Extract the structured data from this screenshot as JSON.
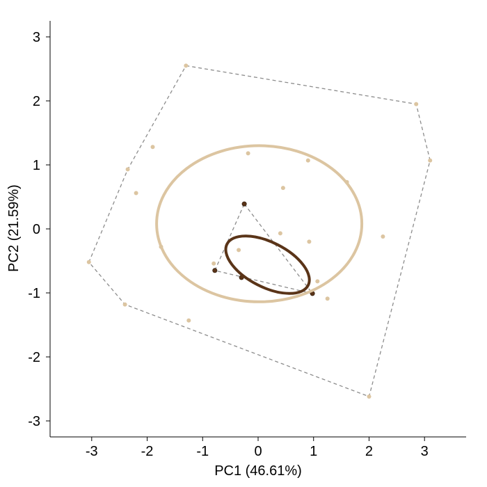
{
  "chart_data": {
    "type": "scatter",
    "title": "",
    "xlabel": "PC1 (46.61%)",
    "ylabel": "PC2 (21.59%)",
    "xlim": [
      -3.75,
      3.75
    ],
    "ylim": [
      -3.25,
      3.25
    ],
    "xticks": [
      -3,
      -2,
      -1,
      0,
      1,
      2,
      3
    ],
    "yticks": [
      -3,
      -2,
      -1,
      0,
      1,
      2,
      3
    ],
    "grid": false,
    "legend": "none",
    "hull_color": "#8c8c8c",
    "series": [
      {
        "color": "#dcc5a1",
        "points": [
          [
            -1.3,
            2.55
          ],
          [
            2.85,
            1.95
          ],
          [
            3.1,
            1.07
          ],
          [
            -1.9,
            1.28
          ],
          [
            -0.18,
            1.18
          ],
          [
            0.9,
            1.07
          ],
          [
            -2.35,
            0.93
          ],
          [
            0.45,
            0.64
          ],
          [
            1.6,
            0.73
          ],
          [
            -2.2,
            0.56
          ],
          [
            0.4,
            -0.07
          ],
          [
            2.25,
            -0.12
          ],
          [
            0.92,
            -0.2
          ],
          [
            -1.75,
            -0.28
          ],
          [
            -0.35,
            -0.33
          ],
          [
            -0.8,
            -0.54
          ],
          [
            -3.05,
            -0.52
          ],
          [
            1.07,
            -0.82
          ],
          [
            1.25,
            -1.09
          ],
          [
            -2.4,
            -1.18
          ],
          [
            -1.25,
            -1.43
          ],
          [
            2.0,
            -2.62
          ]
        ],
        "ellipse": {
          "cx": 0.02,
          "cy": 0.08,
          "rx": 1.85,
          "ry": 1.22,
          "angle_deg": 0
        },
        "hull": [
          [
            -1.3,
            2.55
          ],
          [
            2.85,
            1.95
          ],
          [
            3.1,
            1.07
          ],
          [
            2.0,
            -2.62
          ],
          [
            -2.4,
            -1.18
          ],
          [
            -3.05,
            -0.52
          ],
          [
            -2.35,
            0.93
          ]
        ]
      },
      {
        "color": "#5a3418",
        "points": [
          [
            -0.25,
            0.39
          ],
          [
            -0.78,
            -0.65
          ],
          [
            -0.3,
            -0.76
          ],
          [
            0.98,
            -1.01
          ]
        ],
        "ellipse": {
          "cx": 0.17,
          "cy": -0.56,
          "rx": 0.82,
          "ry": 0.35,
          "angle_deg": -27
        },
        "hull": [
          [
            -0.25,
            0.39
          ],
          [
            0.98,
            -1.01
          ],
          [
            -0.78,
            -0.65
          ]
        ]
      }
    ]
  }
}
